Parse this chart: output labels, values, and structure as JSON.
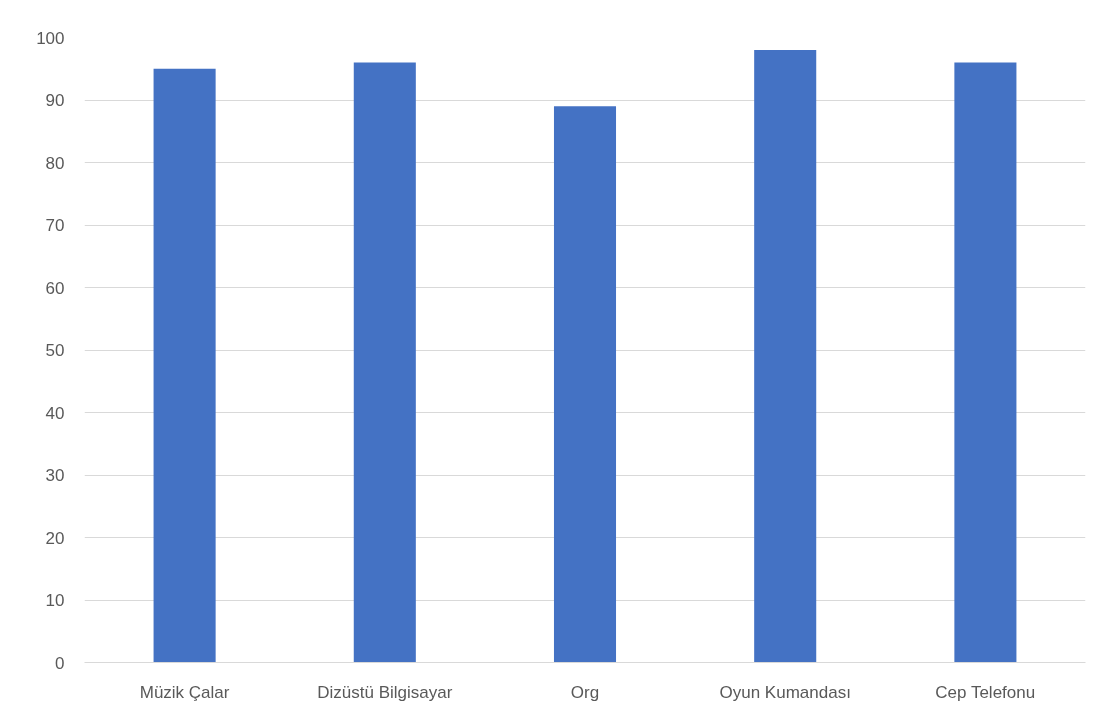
{
  "chart_data": {
    "type": "bar",
    "categories": [
      "Müzik Çalar",
      "Dizüstü Bilgisayar",
      "Org",
      "Oyun Kumandası",
      "Cep Telefonu"
    ],
    "values": [
      95,
      96,
      89,
      98,
      96
    ],
    "color": "#4472c4",
    "ylim": [
      0,
      100
    ],
    "yticks": [
      0,
      10,
      20,
      30,
      40,
      50,
      60,
      70,
      80,
      90,
      100
    ],
    "grid": "y"
  }
}
